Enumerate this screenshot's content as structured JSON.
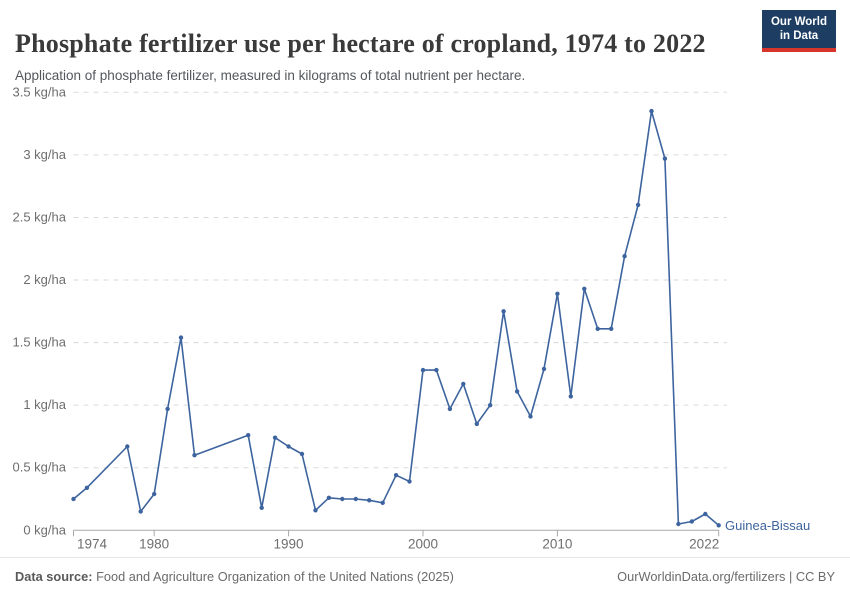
{
  "header": {
    "title": "Phosphate fertilizer use per hectare of cropland, 1974 to 2022",
    "subtitle": "Application of phosphate fertilizer, measured in kilograms of total nutrient per hectare.",
    "logo_line1": "Our World",
    "logo_line2": "in Data"
  },
  "colors": {
    "brand_navy": "#1d3d63",
    "brand_red": "#d7342c",
    "series_blue": "#3d649e",
    "grid_gray": "#dadada",
    "axis_gray": "#a8a8a8",
    "tick_label_gray": "#6e6e6e"
  },
  "chart_data": {
    "type": "line",
    "title": "Phosphate fertilizer use per hectare of cropland, 1974 to 2022",
    "xlabel": "",
    "ylabel": "kg/ha",
    "xlim": [
      1974,
      2022
    ],
    "ylim": [
      0,
      3.5
    ],
    "grid": "horizontal-dashed",
    "legend_position": "end-of-line-label",
    "yticks": [
      0,
      0.5,
      1,
      1.5,
      2,
      2.5,
      3,
      3.5
    ],
    "ytick_labels": [
      "0 kg/ha",
      "0.5 kg/ha",
      "1 kg/ha",
      "1.5 kg/ha",
      "2 kg/ha",
      "2.5 kg/ha",
      "3 kg/ha",
      "3.5 kg/ha"
    ],
    "xticks": [
      1974,
      1980,
      1990,
      2000,
      2010,
      2022
    ],
    "series": [
      {
        "name": "Guinea-Bissau",
        "color": "#3d649e",
        "unit": "kg/ha",
        "missing_years": [
          1976,
          1977,
          1984,
          1985,
          1986
        ],
        "points": [
          [
            1974,
            0.25
          ],
          [
            1975,
            0.34
          ],
          [
            1978,
            0.67
          ],
          [
            1979,
            0.15
          ],
          [
            1980,
            0.29
          ],
          [
            1981,
            0.97
          ],
          [
            1982,
            1.54
          ],
          [
            1983,
            0.6
          ],
          [
            1987,
            0.76
          ],
          [
            1988,
            0.18
          ],
          [
            1989,
            0.74
          ],
          [
            1990,
            0.67
          ],
          [
            1991,
            0.61
          ],
          [
            1992,
            0.16
          ],
          [
            1993,
            0.26
          ],
          [
            1994,
            0.25
          ],
          [
            1995,
            0.25
          ],
          [
            1996,
            0.24
          ],
          [
            1997,
            0.22
          ],
          [
            1998,
            0.44
          ],
          [
            1999,
            0.39
          ],
          [
            2000,
            1.28
          ],
          [
            2001,
            1.28
          ],
          [
            2002,
            0.97
          ],
          [
            2003,
            1.17
          ],
          [
            2004,
            0.85
          ],
          [
            2005,
            1.0
          ],
          [
            2006,
            1.75
          ],
          [
            2007,
            1.11
          ],
          [
            2008,
            0.91
          ],
          [
            2009,
            1.29
          ],
          [
            2010,
            1.89
          ],
          [
            2011,
            1.07
          ],
          [
            2012,
            1.93
          ],
          [
            2013,
            1.61
          ],
          [
            2014,
            1.61
          ],
          [
            2015,
            2.19
          ],
          [
            2016,
            2.6
          ],
          [
            2017,
            3.35
          ],
          [
            2018,
            2.97
          ],
          [
            2019,
            0.05
          ],
          [
            2020,
            0.07
          ],
          [
            2021,
            0.13
          ],
          [
            2022,
            0.04
          ]
        ]
      }
    ]
  },
  "footer": {
    "source_label": "Data source:",
    "source_text": " Food and Agriculture Organization of the United Nations (2025)",
    "right_text": "OurWorldinData.org/fertilizers | CC BY"
  }
}
